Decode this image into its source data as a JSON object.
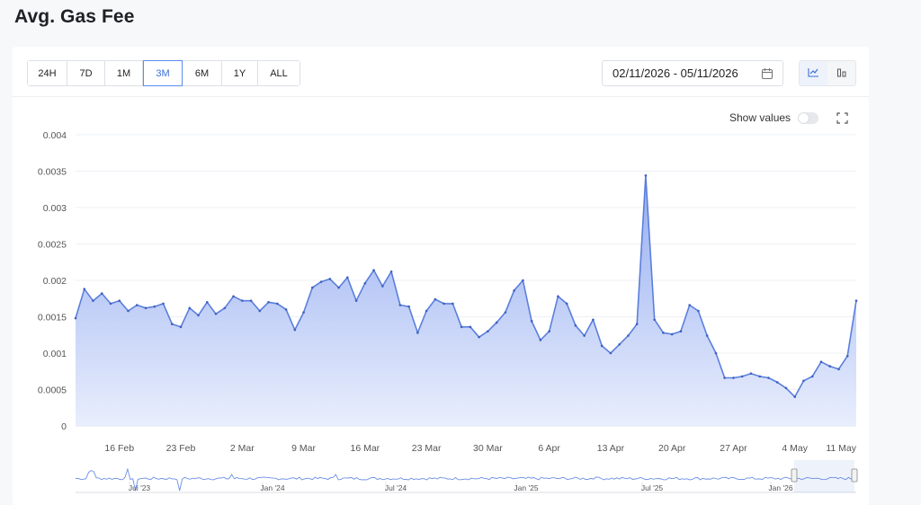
{
  "page": {
    "title": "Avg. Gas Fee"
  },
  "toolbar": {
    "ranges": [
      "24H",
      "7D",
      "1M",
      "3M",
      "6M",
      "1Y",
      "ALL"
    ],
    "active_range": "3M",
    "date_range": "02/11/2026 - 05/11/2026",
    "show_values_label": "Show values",
    "show_values_on": false
  },
  "colors": {
    "line": "#5b7fdc",
    "area_top": "#8fa8f0",
    "accent": "#3b6fd6"
  },
  "icons": {
    "calendar": "calendar-icon",
    "line_view": "line-chart-icon",
    "bar_view": "bar-chart-icon",
    "fullscreen": "fullscreen-icon"
  },
  "chart_data": {
    "type": "area",
    "title": "",
    "xlabel": "",
    "ylabel": "",
    "ylim": [
      0,
      0.004
    ],
    "y_ticks": [
      0,
      0.0005,
      0.001,
      0.0015,
      0.002,
      0.0025,
      0.003,
      0.0035,
      0.004
    ],
    "y_tick_labels": [
      "0",
      "0.0005",
      "0.001",
      "0.0015",
      "0.002",
      "0.0025",
      "0.003",
      "0.0035",
      "0.004"
    ],
    "grid": true,
    "x_start": "2026-02-11",
    "x_end": "2026-05-11",
    "x_tick_labels": [
      "16 Feb",
      "23 Feb",
      "2 Mar",
      "9 Mar",
      "16 Mar",
      "23 Mar",
      "30 Mar",
      "6 Apr",
      "13 Apr",
      "20 Apr",
      "27 Apr",
      "4 May",
      "11 May"
    ],
    "x_tick_dates": [
      "2026-02-16",
      "2026-02-23",
      "2026-03-02",
      "2026-03-09",
      "2026-03-16",
      "2026-03-23",
      "2026-03-30",
      "2026-04-06",
      "2026-04-13",
      "2026-04-20",
      "2026-04-27",
      "2026-05-04",
      "2026-05-11"
    ],
    "values": [
      0.00148,
      0.00188,
      0.00172,
      0.00182,
      0.00168,
      0.00172,
      0.00158,
      0.00166,
      0.00162,
      0.00164,
      0.00168,
      0.0014,
      0.00136,
      0.00162,
      0.00152,
      0.0017,
      0.00154,
      0.00162,
      0.00178,
      0.00172,
      0.00172,
      0.00158,
      0.0017,
      0.00168,
      0.0016,
      0.00132,
      0.00156,
      0.0019,
      0.00198,
      0.00202,
      0.0019,
      0.00204,
      0.00172,
      0.00196,
      0.00214,
      0.00192,
      0.00212,
      0.00166,
      0.00164,
      0.00128,
      0.00158,
      0.00174,
      0.00168,
      0.00168,
      0.00136,
      0.00136,
      0.00122,
      0.0013,
      0.00142,
      0.00156,
      0.00186,
      0.002,
      0.00144,
      0.00118,
      0.0013,
      0.00178,
      0.00168,
      0.00138,
      0.00124,
      0.00146,
      0.0011,
      0.001,
      0.00112,
      0.00124,
      0.0014,
      0.00344,
      0.00146,
      0.00128,
      0.00126,
      0.0013,
      0.00166,
      0.00158,
      0.00124,
      0.001,
      0.00066,
      0.00066,
      0.00068,
      0.00072,
      0.00068,
      0.00066,
      0.0006,
      0.00052,
      0.0004,
      0.00062,
      0.00068,
      0.00088,
      0.00082,
      0.00078,
      0.00096,
      0.00172
    ],
    "navigator": {
      "x_tick_labels": [
        "Jul '23",
        "Jan '24",
        "Jul '24",
        "Jan '25",
        "Jul '25",
        "Jan '26"
      ]
    }
  }
}
